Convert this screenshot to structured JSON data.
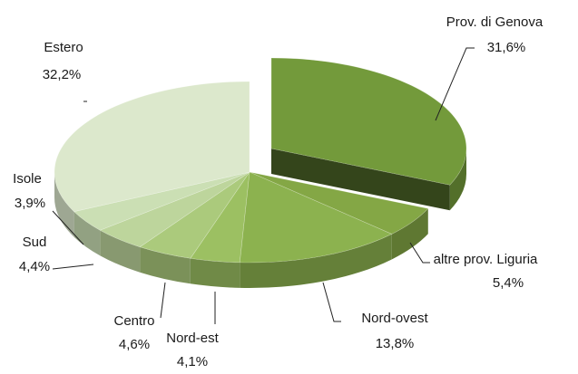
{
  "chart_data": {
    "type": "pie",
    "categories": [
      "Prov. di Genova",
      "altre prov. Liguria",
      "Nord-ovest",
      "Nord-est",
      "Centro",
      "Sud",
      "Isole",
      "Estero"
    ],
    "values": [
      31.6,
      5.4,
      13.8,
      4.1,
      4.6,
      4.4,
      3.9,
      32.2
    ],
    "value_labels": [
      "31,6%",
      "5,4%",
      "13,8%",
      "4,1%",
      "4,6%",
      "4,4%",
      "3,9%",
      "32,2%"
    ],
    "colors": [
      "#739a3b",
      "#84a745",
      "#8cb24f",
      "#9cc062",
      "#abca7c",
      "#bdd59c",
      "#cbdfb4",
      "#dce8cc"
    ]
  }
}
